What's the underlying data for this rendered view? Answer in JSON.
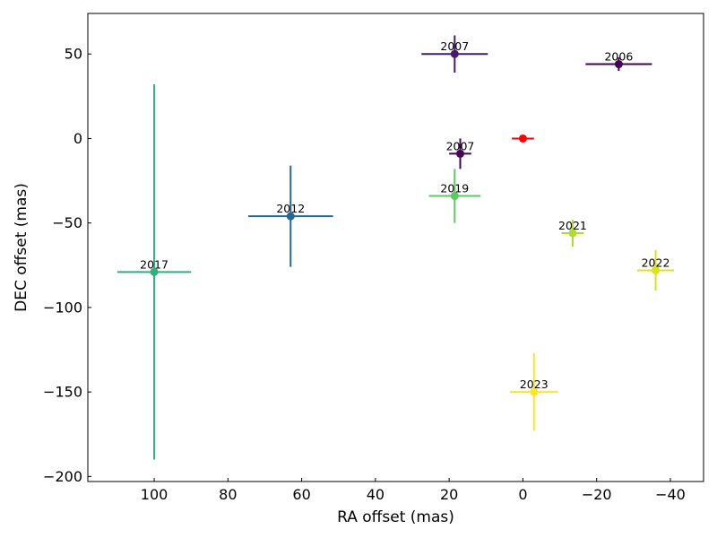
{
  "chart_data": {
    "type": "scatter",
    "title": "",
    "xlabel": "RA offset (mas)",
    "ylabel": "DEC offset (mas)",
    "xlim": [
      118,
      -49
    ],
    "ylim": [
      -203,
      74
    ],
    "xticks": [
      100,
      80,
      60,
      40,
      20,
      0,
      -20,
      -40
    ],
    "xtick_labels": [
      "100",
      "80",
      "60",
      "40",
      "20",
      "0",
      "−20",
      "−40"
    ],
    "yticks": [
      50,
      0,
      -50,
      -100,
      -150,
      -200
    ],
    "ytick_labels": [
      "50",
      "0",
      "−50",
      "−100",
      "−150",
      "−200"
    ],
    "reference": {
      "x": 0,
      "y": 0,
      "xerr": 3,
      "yerr": 2,
      "color": "#ff0000"
    },
    "points": [
      {
        "label": "2006",
        "x": -26,
        "y": 44,
        "xerr": 9,
        "yerr": 4,
        "color": "#440154"
      },
      {
        "label": "2007",
        "x": 18.5,
        "y": 50,
        "xerr": 9,
        "yerr": 11,
        "color": "#481a6c"
      },
      {
        "label": "2007",
        "x": 17,
        "y": -9,
        "xerr": 3,
        "yerr": 9,
        "color": "#450457"
      },
      {
        "label": "2012",
        "x": 63,
        "y": -46,
        "xerr": 11.5,
        "yerr": 30,
        "color": "#26698e"
      },
      {
        "label": "2017",
        "x": 100,
        "y": -79,
        "xerr": 10,
        "yerr": 111,
        "color": "#2db27d"
      },
      {
        "label": "2019",
        "x": 18.5,
        "y": -34,
        "xerr": 7,
        "yerr": 16,
        "color": "#5ec962"
      },
      {
        "label": "2021",
        "x": -13.5,
        "y": -56,
        "xerr": 3,
        "yerr": 8,
        "color": "#addc30"
      },
      {
        "label": "2022",
        "x": -36,
        "y": -78,
        "xerr": 5,
        "yerr": 12,
        "color": "#dde318"
      },
      {
        "label": "2023",
        "x": -3,
        "y": -150,
        "xerr": 6.5,
        "yerr": 23,
        "color": "#fde725"
      }
    ]
  }
}
